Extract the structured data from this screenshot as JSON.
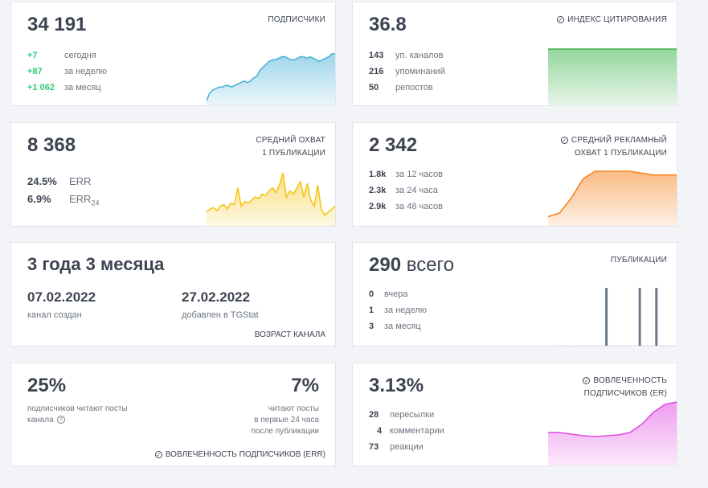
{
  "subscribers": {
    "value": "34 191",
    "label": "ПОДПИСЧИКИ",
    "rows": [
      {
        "num": "+7",
        "text": "сегодня"
      },
      {
        "num": "+87",
        "text": "за неделю"
      },
      {
        "num": "+1 062",
        "text": "за месяц"
      }
    ],
    "sparkline": [
      2,
      7,
      9,
      10,
      11,
      11,
      12,
      12,
      11,
      12,
      13,
      14,
      15,
      14,
      15,
      17,
      18,
      22,
      24,
      26,
      28,
      29,
      29,
      30,
      31,
      31,
      30,
      29,
      29,
      30,
      31,
      31,
      30,
      31,
      30,
      29,
      28,
      29,
      30,
      31,
      33,
      33
    ],
    "color": "#4fb3d9"
  },
  "citation": {
    "value": "36.8",
    "label": "ИНДЕКС ЦИТИРОВАНИЯ",
    "rows": [
      {
        "num": "143",
        "text": "уп. каналов"
      },
      {
        "num": "216",
        "text": "упоминаний"
      },
      {
        "num": "50",
        "text": "репостов"
      }
    ],
    "sparkline": [
      10,
      10,
      10,
      10,
      10,
      10,
      10,
      10,
      10,
      10
    ],
    "color": "#3cb44b"
  },
  "reach": {
    "value": "8 368",
    "label_line1": "СРЕДНИЙ ОХВАТ",
    "label_line2": "1 ПУБЛИКАЦИИ",
    "err_rows": [
      {
        "num": "24.5%",
        "text": "ERR",
        "sub": ""
      },
      {
        "num": "6.9%",
        "text": "ERR",
        "sub": "24"
      }
    ],
    "sparkline": [
      8,
      10,
      11,
      9,
      12,
      13,
      10,
      14,
      13,
      24,
      12,
      15,
      14,
      16,
      18,
      17,
      20,
      19,
      22,
      24,
      21,
      26,
      34,
      18,
      22,
      20,
      24,
      28,
      18,
      27,
      16,
      12,
      26,
      10,
      6,
      8,
      10,
      12
    ],
    "color": "#f5c518"
  },
  "ad_reach": {
    "value": "2 342",
    "label_line1": "СРЕДНИЙ РЕКЛАМНЫЙ",
    "label_line2": "ОХВАТ 1 ПУБЛИКАЦИИ",
    "rows": [
      {
        "num": "1.8k",
        "text": "за 12 часов"
      },
      {
        "num": "2.3k",
        "text": "за 24 часа"
      },
      {
        "num": "2.9k",
        "text": "за 48 часов"
      }
    ],
    "sparkline": [
      1.8,
      1.9,
      2.3,
      2.8,
      3.0,
      3.0,
      3.0,
      3.0,
      2.95,
      2.9,
      2.9,
      2.9
    ],
    "color": "#f5841f"
  },
  "age": {
    "value": "3 года 3 месяца",
    "created_date": "07.02.2022",
    "created_label": "канал создан",
    "added_date": "27.02.2022",
    "added_label": "добавлен в TGStat",
    "label": "ВОЗРАСТ КАНАЛА"
  },
  "posts": {
    "value": "290",
    "suffix": " всего",
    "label": "ПУБЛИКАЦИИ",
    "rows": [
      {
        "num": "0",
        "text": "вчера"
      },
      {
        "num": "1",
        "text": "за неделю"
      },
      {
        "num": "3",
        "text": "за месяц"
      }
    ],
    "bars": [
      0,
      0,
      0,
      0,
      0,
      0,
      0,
      0,
      0,
      1,
      0,
      0,
      0,
      0,
      0,
      1,
      0,
      0,
      1,
      0,
      0,
      0
    ],
    "color": "#6b7a8a"
  },
  "err": {
    "left_value": "25%",
    "left_text_line1": "подписчиков читают посты",
    "left_text_line2": "канала",
    "right_value": "7%",
    "right_text_line1": "читают посты",
    "right_text_line2": "в первые 24 часа",
    "right_text_line3": "после публикации",
    "label": "ВОВЛЕЧЕННОСТЬ ПОДПИСЧИКОВ (ERR)"
  },
  "engagement": {
    "value": "3.13%",
    "label_line1": "ВОВЛЕЧЕННОСТЬ",
    "label_line2": "ПОДПИСЧИКОВ (ER)",
    "rows": [
      {
        "num": "28",
        "text": "пересылки"
      },
      {
        "num": "4",
        "text": "комментарии"
      },
      {
        "num": "73",
        "text": "реакции"
      }
    ],
    "sparkline": [
      3.0,
      3.0,
      2.98,
      2.96,
      2.95,
      2.96,
      2.97,
      3.0,
      3.1,
      3.25,
      3.35,
      3.38
    ],
    "color": "#e24be2"
  }
}
